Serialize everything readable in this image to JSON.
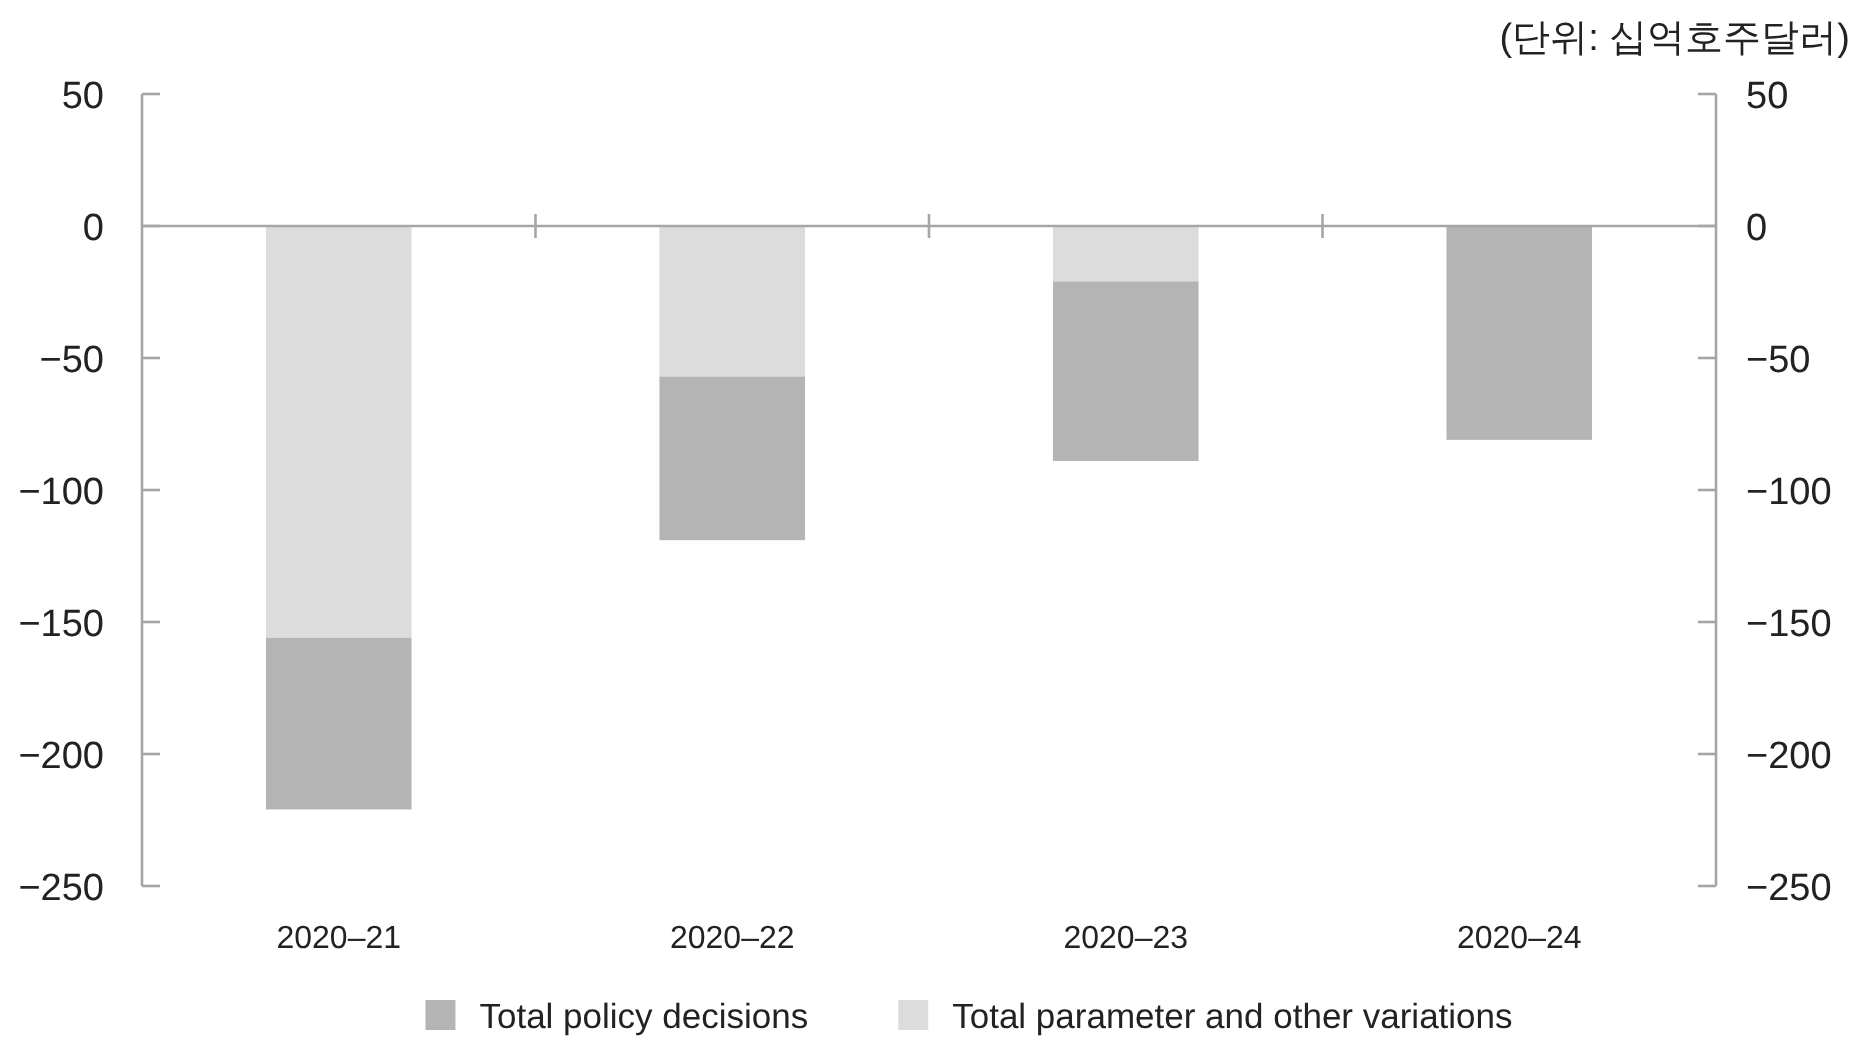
{
  "chart_data": {
    "type": "bar",
    "stacked": true,
    "annotations": [
      "(단위: 십억호주달러)"
    ],
    "categories": [
      "2020–21",
      "2020–22",
      "2020–23",
      "2020–24"
    ],
    "series": [
      {
        "name": "Total parameter and other variations",
        "color": "#dcdcdc",
        "values": [
          -156,
          -57,
          -21,
          0
        ]
      },
      {
        "name": "Total policy decisions",
        "color": "#b4b4b4",
        "values": [
          -65,
          -62,
          -68,
          -81
        ]
      }
    ],
    "ylim": [
      -250,
      50
    ],
    "yticks": [
      50,
      0,
      -50,
      -100,
      -150,
      -200,
      -250
    ],
    "y2lim": [
      -250,
      50
    ],
    "y2ticks": [
      50,
      0,
      -50,
      -100,
      -150,
      -200,
      -250
    ],
    "legend": "bottom"
  }
}
